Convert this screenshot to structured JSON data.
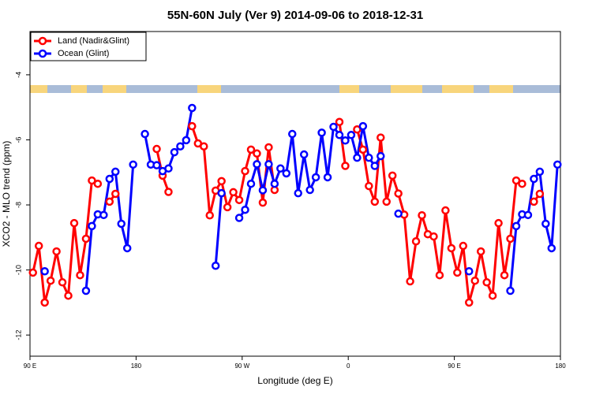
{
  "chart_data": {
    "type": "line",
    "title": "55N-60N July (Ver 9)   2014-09-06 to 2018-12-31",
    "x_label": "Longitude (deg E)",
    "y_label": "XCO2 - MLO trend (ppm)",
    "x": [
      92.5,
      97.5,
      102.5,
      107.5,
      112.5,
      117.5,
      122.5,
      127.5,
      132.5,
      137.5,
      142.5,
      147.5,
      152.5,
      157.5,
      162.5,
      167.5,
      172.5,
      177.5,
      182.5,
      187.5,
      192.5,
      197.5,
      202.5,
      207.5,
      212.5,
      217.5,
      222.5,
      227.5,
      232.5,
      237.5,
      242.5,
      247.5,
      252.5,
      257.5,
      262.5,
      267.5,
      272.5,
      277.5,
      282.5,
      287.5,
      292.5,
      297.5,
      302.5,
      307.5,
      312.5,
      317.5,
      322.5,
      327.5,
      332.5,
      337.5,
      342.5,
      347.5,
      352.5,
      357.5,
      362.5,
      367.5,
      372.5,
      377.5,
      382.5,
      387.5,
      392.5,
      397.5,
      402.5,
      407.5,
      412.5,
      417.5,
      422.5,
      427.5,
      432.5,
      437.5,
      442.5,
      447.5,
      452.5,
      457.5,
      462.5,
      467.5,
      472.5,
      477.5,
      482.5,
      487.5,
      492.5,
      497.5,
      502.5,
      507.5,
      512.5,
      517.5,
      522.5,
      527.5,
      532.5,
      537.5
    ],
    "series": [
      {
        "name": "Land (Nadir&Glint)",
        "color": "#ff0000",
        "values": [
          -10.08,
          -9.26,
          -11.0,
          -10.33,
          -9.43,
          -10.38,
          -10.79,
          -8.56,
          -10.16,
          -9.04,
          -7.25,
          -7.35,
          null,
          -7.9,
          -7.66,
          null,
          null,
          null,
          null,
          null,
          null,
          -6.28,
          -7.1,
          -7.6,
          null,
          null,
          null,
          -5.58,
          -6.11,
          -6.2,
          -8.32,
          -7.56,
          -7.27,
          -8.07,
          -7.61,
          -7.85,
          -6.96,
          -6.3,
          -6.42,
          -7.93,
          -6.23,
          -7.54,
          null,
          null,
          null,
          null,
          null,
          null,
          null,
          null,
          null,
          null,
          -5.45,
          -6.8,
          null,
          -5.68,
          -6.3,
          -7.42,
          -7.9,
          -5.93,
          -7.9,
          -7.1,
          -7.65,
          -8.3,
          -10.35,
          -9.12,
          -8.32,
          -8.9,
          -8.97,
          -10.16,
          -8.17,
          -9.33,
          -10.08,
          -9.26,
          -11.0,
          -10.33,
          -9.43,
          -10.38,
          -10.79,
          -8.56,
          -10.16,
          -9.04,
          -7.25,
          -7.35,
          null,
          -7.9,
          -7.66,
          null,
          null,
          null
        ]
      },
      {
        "name": "Ocean (Glint)",
        "color": "#0000ff",
        "values": [
          null,
          null,
          -10.04,
          null,
          null,
          null,
          null,
          null,
          null,
          -10.64,
          -8.65,
          -8.29,
          -8.31,
          -7.2,
          -6.98,
          -8.58,
          -9.33,
          -6.76,
          null,
          -5.82,
          -6.76,
          -6.78,
          -6.96,
          -6.88,
          -6.38,
          -6.2,
          -6.01,
          -5.02,
          null,
          null,
          null,
          -9.87,
          -7.64,
          null,
          null,
          -8.4,
          -8.15,
          -7.35,
          -6.75,
          -7.55,
          -6.75,
          -7.35,
          -6.88,
          -7.03,
          -5.82,
          -7.64,
          -6.45,
          -7.54,
          -7.15,
          -5.78,
          -7.15,
          -5.6,
          -5.85,
          -6.02,
          -5.85,
          -6.55,
          -5.58,
          -6.55,
          -6.8,
          -6.5,
          null,
          null,
          -8.27,
          null,
          null,
          null,
          null,
          null,
          null,
          null,
          null,
          null,
          null,
          null,
          -10.04,
          null,
          null,
          null,
          null,
          null,
          null,
          -10.64,
          -8.65,
          -8.29,
          -8.31,
          -7.2,
          -6.98,
          -8.58,
          -9.33,
          -6.76
        ]
      }
    ],
    "xlim": [
      90,
      540
    ],
    "xticks": [
      {
        "value": 90,
        "label": "90 E"
      },
      180,
      {
        "value": 270,
        "label": "90 W"
      },
      {
        "value": 360,
        "label": "0"
      },
      {
        "value": 450,
        "label": "90 E"
      },
      {
        "value": 540,
        "label": "180"
      }
    ],
    "ylim": [
      -12.65,
      -2.67
    ],
    "yticks": [
      -4,
      -6,
      -8,
      -10,
      -12
    ],
    "legend": "top-left"
  }
}
